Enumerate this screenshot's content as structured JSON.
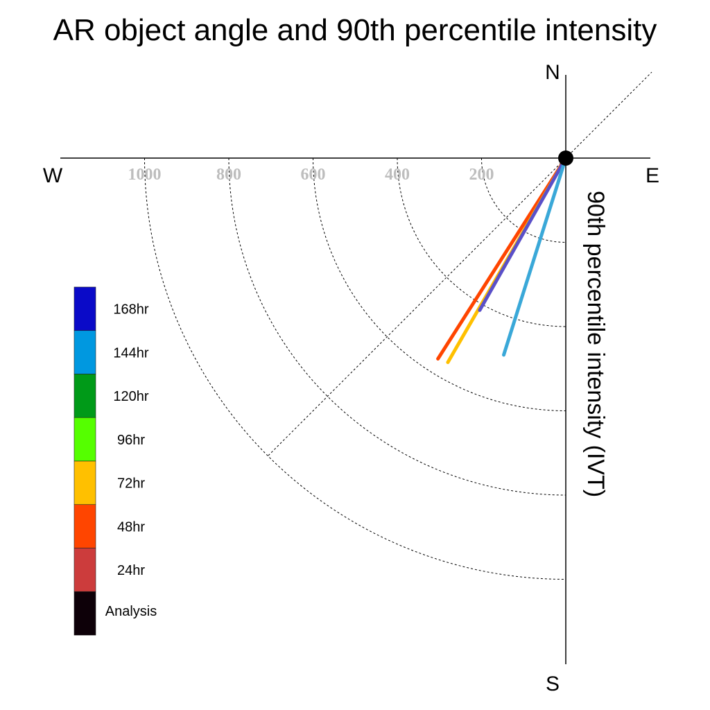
{
  "chart_data": {
    "type": "polar-vector",
    "title": "AR object angle and 90th percentile intensity",
    "ylabel": "90th percentile intensity (IVT)",
    "compass": {
      "north": "N",
      "south": "S",
      "east": "E",
      "west": "W"
    },
    "radial_ticks": [
      {
        "value": 200,
        "label": "200"
      },
      {
        "value": 400,
        "label": "400"
      },
      {
        "value": 600,
        "label": "600"
      },
      {
        "value": 800,
        "label": "800"
      },
      {
        "value": 1000,
        "label": "1000"
      }
    ],
    "rlim": [
      0,
      1000
    ],
    "series": [
      {
        "name": "48hr",
        "color": "#ff4500",
        "magnitude": 565,
        "direction_deg": 212.5
      },
      {
        "name": "72hr",
        "color": "#ffc000",
        "magnitude": 560,
        "direction_deg": 210.0
      },
      {
        "name": "168hr",
        "color": "#5a50c8",
        "magnitude": 415,
        "direction_deg": 209.5
      },
      {
        "name": "144hr",
        "color": "#3aa8d8",
        "magnitude": 490,
        "direction_deg": 197.5
      }
    ],
    "legend": [
      {
        "label": "168hr",
        "color": "#0a0ac8"
      },
      {
        "label": "144hr",
        "color": "#0098e0"
      },
      {
        "label": "120hr",
        "color": "#009a18"
      },
      {
        "label": "96hr",
        "color": "#55ff00"
      },
      {
        "label": "72hr",
        "color": "#ffc000"
      },
      {
        "label": "48hr",
        "color": "#ff4500"
      },
      {
        "label": "24hr",
        "color": "#cc3c3c"
      },
      {
        "label": "Analysis",
        "color": "#0d0008"
      }
    ],
    "legend_placement": "left",
    "grid": true
  }
}
